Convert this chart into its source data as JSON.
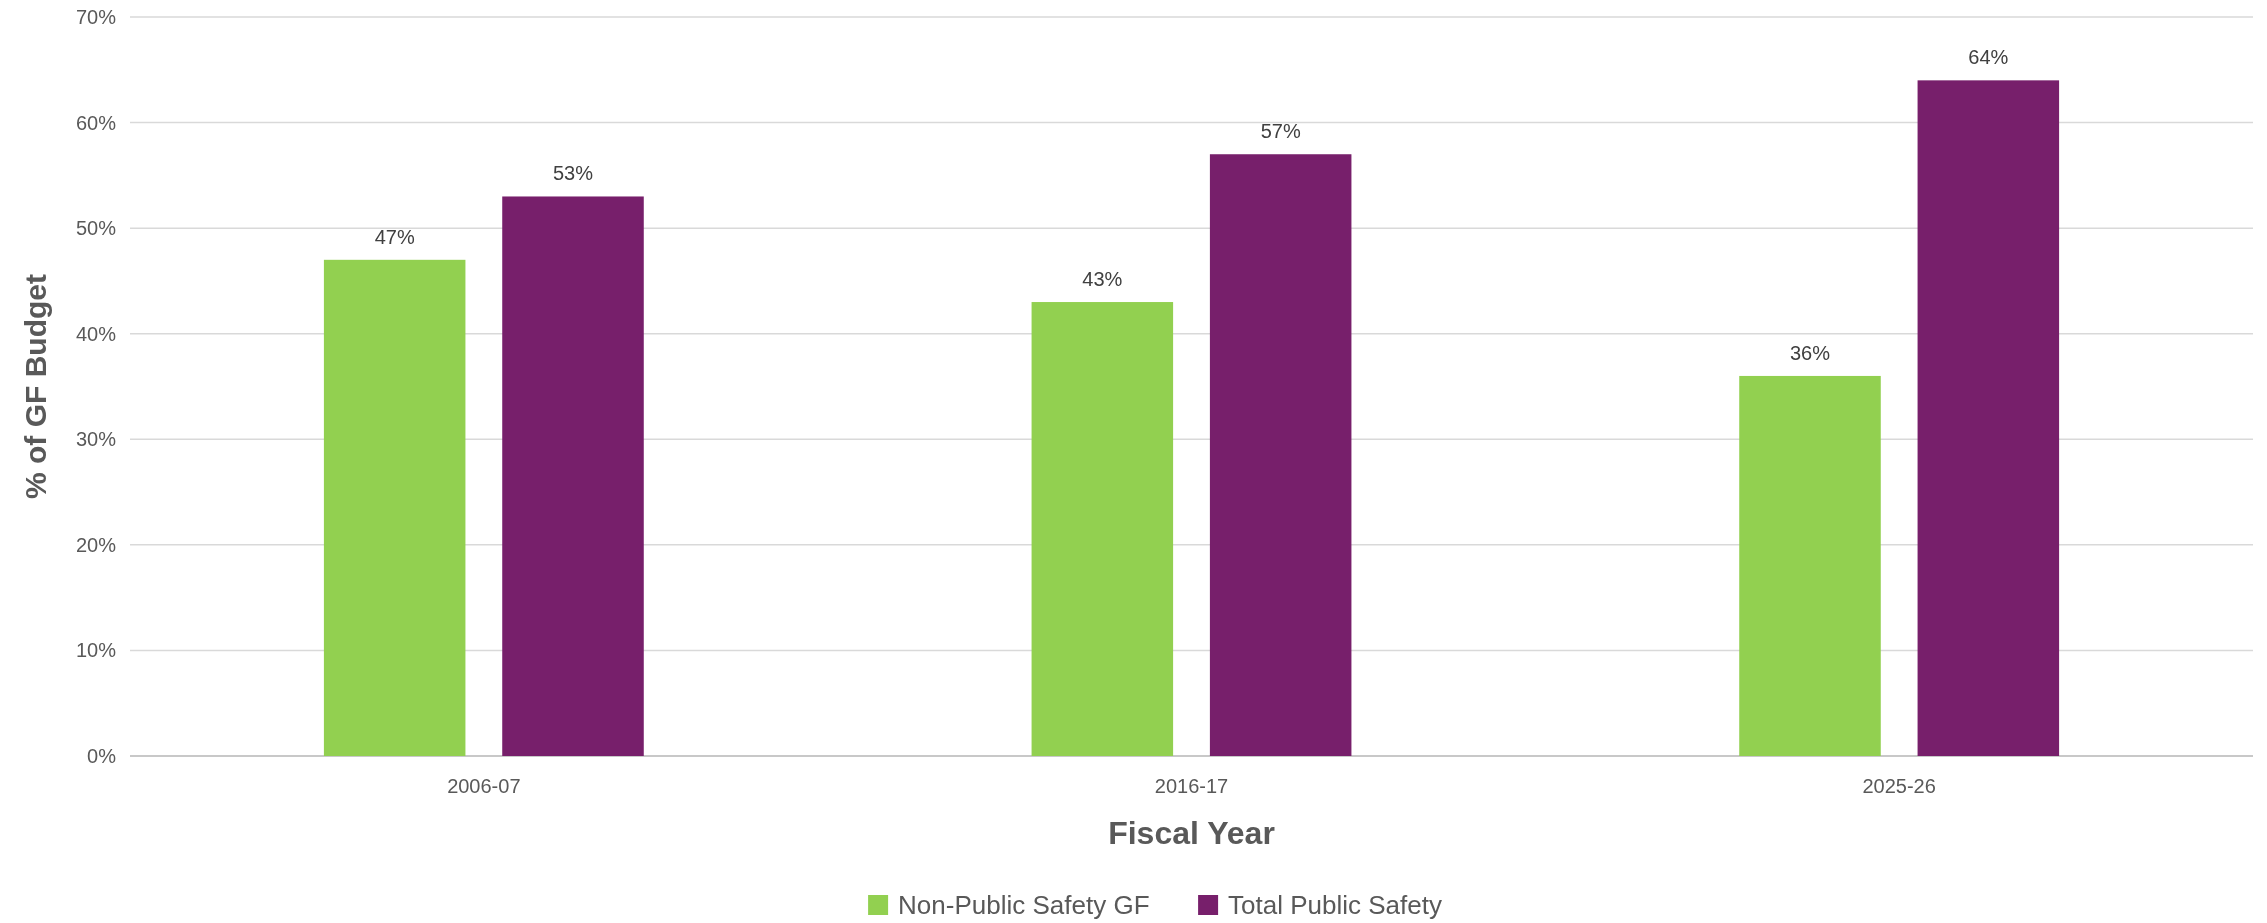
{
  "chart_data": {
    "type": "bar",
    "xlabel": "Fiscal Year",
    "ylabel": "% of GF Budget",
    "categories": [
      "2006-07",
      "2016-17",
      "2025-26"
    ],
    "series": [
      {
        "name": "Non-Public Safety GF",
        "color": "#92d050",
        "values": [
          47,
          43,
          36
        ],
        "value_labels": [
          "47%",
          "43%",
          "36%"
        ]
      },
      {
        "name": "Total Public Safety",
        "color": "#771f6b",
        "values": [
          53,
          57,
          64
        ],
        "value_labels": [
          "53%",
          "57%",
          "64%"
        ]
      }
    ],
    "ylim": [
      0,
      70
    ],
    "yticks": [
      {
        "value": 0,
        "label": "0%"
      },
      {
        "value": 10,
        "label": "10%"
      },
      {
        "value": 20,
        "label": "20%"
      },
      {
        "value": 30,
        "label": "30%"
      },
      {
        "value": 40,
        "label": "40%"
      },
      {
        "value": 50,
        "label": "50%"
      },
      {
        "value": 60,
        "label": "60%"
      },
      {
        "value": 70,
        "label": "70%"
      }
    ],
    "grid": "y",
    "legend": "bottom"
  }
}
